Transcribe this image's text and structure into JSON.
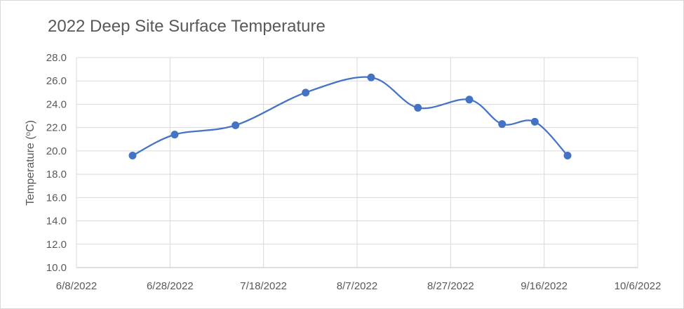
{
  "chart_data": {
    "type": "scatter",
    "title": "2022 Deep Site Surface Temperature",
    "ylabel_main": "Temperature (",
    "ylabel_sup": "o",
    "ylabel_end": "C)",
    "xlabel": "",
    "ylim": [
      10.0,
      28.0
    ],
    "yticks": [
      "10.0",
      "12.0",
      "14.0",
      "16.0",
      "18.0",
      "20.0",
      "22.0",
      "24.0",
      "26.0",
      "28.0"
    ],
    "xticks": [
      "6/8/2022",
      "6/28/2022",
      "7/18/2022",
      "8/7/2022",
      "8/27/2022",
      "9/16/2022",
      "10/6/2022"
    ],
    "xlim": [
      "2022-06-08",
      "2022-10-06"
    ],
    "grid": true,
    "line_style": "smooth",
    "series_color": "#4472c4",
    "points": [
      {
        "x": "2022-06-20",
        "y": 19.6
      },
      {
        "x": "2022-06-29",
        "y": 21.4
      },
      {
        "x": "2022-07-12",
        "y": 22.2
      },
      {
        "x": "2022-07-27",
        "y": 25.0
      },
      {
        "x": "2022-08-10",
        "y": 26.3
      },
      {
        "x": "2022-08-20",
        "y": 23.7
      },
      {
        "x": "2022-08-31",
        "y": 24.4
      },
      {
        "x": "2022-09-07",
        "y": 22.3
      },
      {
        "x": "2022-09-14",
        "y": 22.5
      },
      {
        "x": "2022-09-21",
        "y": 19.6
      }
    ]
  }
}
